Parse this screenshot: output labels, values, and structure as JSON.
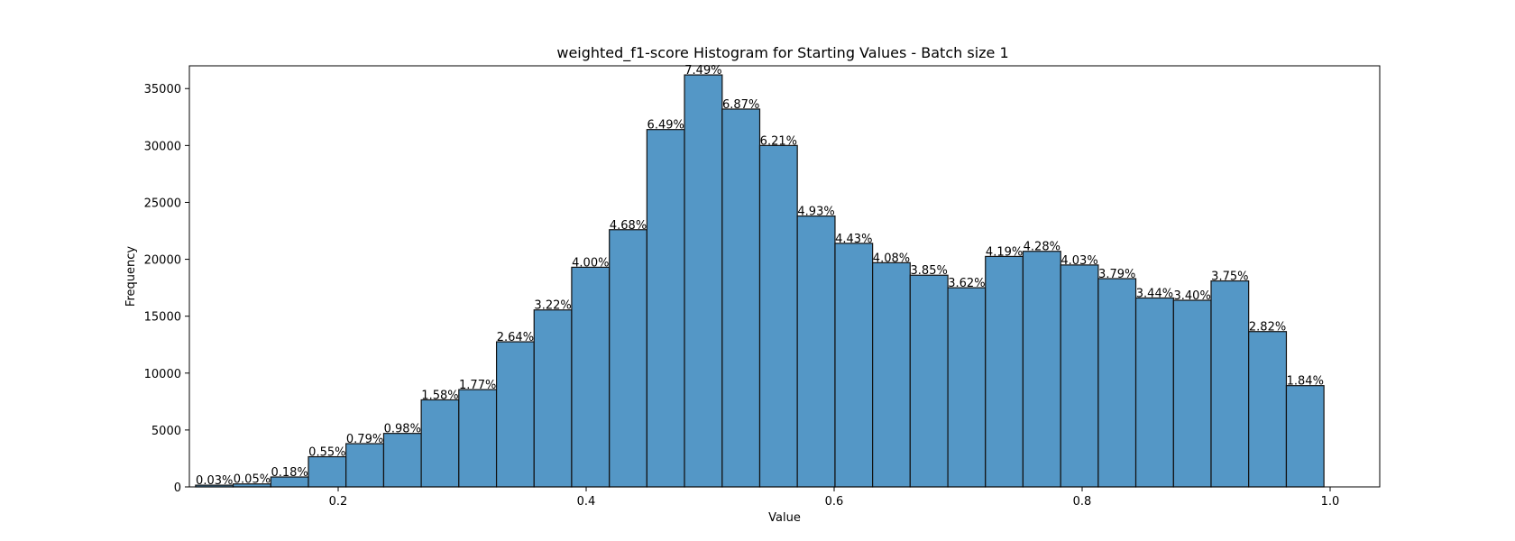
{
  "chart_data": {
    "type": "bar",
    "title": "weighted_f1-score Histogram for Starting Values - Batch size 1",
    "xlabel": "Value",
    "ylabel": "Frequency",
    "xlim": [
      0.08,
      1.04
    ],
    "ylim": [
      0,
      37000
    ],
    "xticks": [
      0.2,
      0.4,
      0.6,
      0.8,
      1.0
    ],
    "xtick_labels": [
      "0.2",
      "0.4",
      "0.6",
      "0.8",
      "1.0"
    ],
    "yticks": [
      0,
      5000,
      10000,
      15000,
      20000,
      25000,
      30000,
      35000
    ],
    "ytick_labels": [
      "0",
      "5000",
      "10000",
      "15000",
      "20000",
      "25000",
      "30000",
      "35000"
    ],
    "bins": [
      {
        "start": 0.085,
        "end": 0.1153,
        "value": 150,
        "label": "0.03%"
      },
      {
        "start": 0.1153,
        "end": 0.1457,
        "value": 260,
        "label": "0.05%"
      },
      {
        "start": 0.1457,
        "end": 0.176,
        "value": 870,
        "label": "0.18%"
      },
      {
        "start": 0.176,
        "end": 0.2063,
        "value": 2650,
        "label": "0.55%"
      },
      {
        "start": 0.2063,
        "end": 0.2367,
        "value": 3800,
        "label": "0.79%"
      },
      {
        "start": 0.2367,
        "end": 0.267,
        "value": 4700,
        "label": "0.98%"
      },
      {
        "start": 0.267,
        "end": 0.2973,
        "value": 7650,
        "label": "1.58%"
      },
      {
        "start": 0.2973,
        "end": 0.3277,
        "value": 8550,
        "label": "1.77%"
      },
      {
        "start": 0.3277,
        "end": 0.358,
        "value": 12750,
        "label": "2.64%"
      },
      {
        "start": 0.358,
        "end": 0.3883,
        "value": 15550,
        "label": "3.22%"
      },
      {
        "start": 0.3883,
        "end": 0.4187,
        "value": 19300,
        "label": "4.00%"
      },
      {
        "start": 0.4187,
        "end": 0.449,
        "value": 22600,
        "label": "4.68%"
      },
      {
        "start": 0.449,
        "end": 0.4793,
        "value": 31400,
        "label": "6.49%"
      },
      {
        "start": 0.4793,
        "end": 0.5097,
        "value": 36200,
        "label": "7.49%"
      },
      {
        "start": 0.5097,
        "end": 0.54,
        "value": 33200,
        "label": "6.87%"
      },
      {
        "start": 0.54,
        "end": 0.5703,
        "value": 30000,
        "label": "6.21%"
      },
      {
        "start": 0.5703,
        "end": 0.6007,
        "value": 23800,
        "label": "4.93%"
      },
      {
        "start": 0.6007,
        "end": 0.631,
        "value": 21400,
        "label": "4.43%"
      },
      {
        "start": 0.631,
        "end": 0.6613,
        "value": 19700,
        "label": "4.08%"
      },
      {
        "start": 0.6613,
        "end": 0.6917,
        "value": 18600,
        "label": "3.85%"
      },
      {
        "start": 0.6917,
        "end": 0.722,
        "value": 17500,
        "label": "3.62%"
      },
      {
        "start": 0.722,
        "end": 0.7523,
        "value": 20250,
        "label": "4.19%"
      },
      {
        "start": 0.7523,
        "end": 0.7827,
        "value": 20700,
        "label": "4.28%"
      },
      {
        "start": 0.7827,
        "end": 0.813,
        "value": 19500,
        "label": "4.03%"
      },
      {
        "start": 0.813,
        "end": 0.8433,
        "value": 18300,
        "label": "3.79%"
      },
      {
        "start": 0.8433,
        "end": 0.8737,
        "value": 16600,
        "label": "3.44%"
      },
      {
        "start": 0.8737,
        "end": 0.904,
        "value": 16400,
        "label": "3.40%"
      },
      {
        "start": 0.904,
        "end": 0.9343,
        "value": 18100,
        "label": "3.75%"
      },
      {
        "start": 0.9343,
        "end": 0.9647,
        "value": 13650,
        "label": "2.82%"
      },
      {
        "start": 0.9647,
        "end": 0.995,
        "value": 8900,
        "label": "1.84%"
      }
    ],
    "grid": false,
    "colors": {
      "bar_fill": "#5497c6",
      "bar_edge": "#111111"
    }
  }
}
